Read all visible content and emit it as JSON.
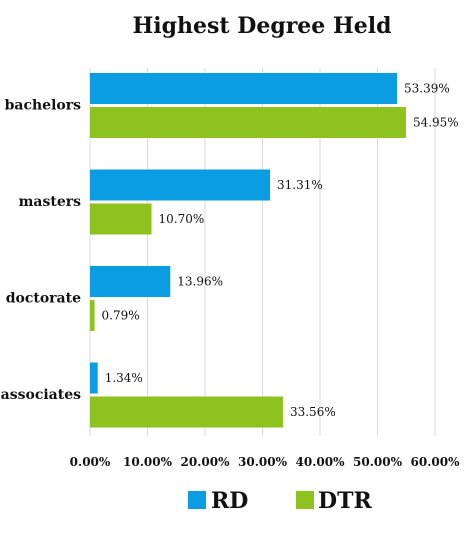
{
  "chart_data": {
    "type": "bar",
    "orientation": "horizontal",
    "title": "Highest Degree Held",
    "categories": [
      "bachelors",
      "masters",
      "doctorate",
      "associates"
    ],
    "series": [
      {
        "name": "RD",
        "color": "#0b9de1",
        "values": [
          53.39,
          31.31,
          13.96,
          1.34
        ],
        "labels": [
          "53.39%",
          "31.31%",
          "13.96%",
          "1.34%"
        ]
      },
      {
        "name": "DTR",
        "color": "#8dc21f",
        "values": [
          54.95,
          10.7,
          0.79,
          33.56
        ],
        "labels": [
          "54.95%",
          "10.70%",
          "0.79%",
          "33.56%"
        ]
      }
    ],
    "xlim": [
      0,
      60
    ],
    "xticks": [
      0,
      10,
      20,
      30,
      40,
      50,
      60
    ],
    "xtick_labels": [
      "0.00%",
      "10.00%",
      "20.00%",
      "30.00%",
      "40.00%",
      "50.00%",
      "60.00%"
    ],
    "grid": true,
    "legend": "bottom"
  }
}
